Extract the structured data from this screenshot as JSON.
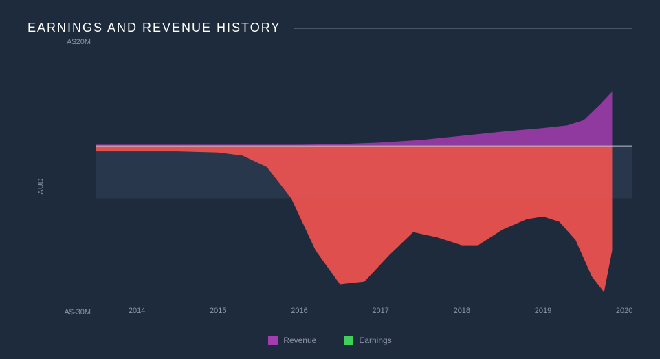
{
  "chart": {
    "type": "area",
    "title": "EARNINGS AND REVENUE HISTORY",
    "title_fontsize": 18,
    "title_letterspacing": 2,
    "background_color": "#1e2b3c",
    "plot_band_color": "#28374c",
    "text_color": "#ffffff",
    "muted_text_color": "#8a96a8",
    "divider_color": "#4a5568",
    "ylabel": "AUD",
    "ylim": [
      -30,
      20
    ],
    "yticks": [
      {
        "value": 20,
        "label": "A$20M"
      },
      {
        "value": -30,
        "label": "A$-30M"
      }
    ],
    "baseline_value": 0,
    "baseline_color": "#b8c2d0",
    "grid_band_bounds": [
      -10,
      0
    ],
    "xlim": [
      2013.5,
      2020.1
    ],
    "xticks": [
      {
        "value": 2014,
        "label": "2014"
      },
      {
        "value": 2015,
        "label": "2015"
      },
      {
        "value": 2016,
        "label": "2016"
      },
      {
        "value": 2017,
        "label": "2017"
      },
      {
        "value": 2018,
        "label": "2018"
      },
      {
        "value": 2019,
        "label": "2019"
      },
      {
        "value": 2020,
        "label": "2020"
      }
    ],
    "legend": [
      {
        "name": "Revenue",
        "color": "#a43db0"
      },
      {
        "name": "Earnings",
        "color": "#3fcf5a"
      }
    ],
    "series": {
      "revenue": {
        "legend_color": "#a43db0",
        "fill_opacity": 0.85,
        "data": [
          {
            "x": 2013.5,
            "y": 0.3
          },
          {
            "x": 2014.0,
            "y": 0.3
          },
          {
            "x": 2015.0,
            "y": 0.3
          },
          {
            "x": 2016.0,
            "y": 0.3
          },
          {
            "x": 2016.5,
            "y": 0.4
          },
          {
            "x": 2017.0,
            "y": 0.7
          },
          {
            "x": 2017.5,
            "y": 1.2
          },
          {
            "x": 2018.0,
            "y": 2.0
          },
          {
            "x": 2018.5,
            "y": 2.8
          },
          {
            "x": 2019.0,
            "y": 3.5
          },
          {
            "x": 2019.3,
            "y": 4.0
          },
          {
            "x": 2019.5,
            "y": 5.0
          },
          {
            "x": 2019.7,
            "y": 8.0
          },
          {
            "x": 2019.85,
            "y": 10.5
          }
        ]
      },
      "earnings": {
        "fill_color": "#ef5350",
        "fill_opacity": 0.92,
        "data": [
          {
            "x": 2013.5,
            "y": -1.0
          },
          {
            "x": 2014.0,
            "y": -1.0
          },
          {
            "x": 2014.5,
            "y": -1.0
          },
          {
            "x": 2015.0,
            "y": -1.2
          },
          {
            "x": 2015.3,
            "y": -1.8
          },
          {
            "x": 2015.6,
            "y": -4.0
          },
          {
            "x": 2015.9,
            "y": -10.0
          },
          {
            "x": 2016.2,
            "y": -20.0
          },
          {
            "x": 2016.5,
            "y": -26.5
          },
          {
            "x": 2016.8,
            "y": -26.0
          },
          {
            "x": 2017.1,
            "y": -21.0
          },
          {
            "x": 2017.4,
            "y": -16.5
          },
          {
            "x": 2017.7,
            "y": -17.5
          },
          {
            "x": 2018.0,
            "y": -19.0
          },
          {
            "x": 2018.2,
            "y": -19.0
          },
          {
            "x": 2018.5,
            "y": -16.0
          },
          {
            "x": 2018.8,
            "y": -14.0
          },
          {
            "x": 2019.0,
            "y": -13.5
          },
          {
            "x": 2019.2,
            "y": -14.5
          },
          {
            "x": 2019.4,
            "y": -18.0
          },
          {
            "x": 2019.6,
            "y": -25.0
          },
          {
            "x": 2019.75,
            "y": -28.0
          },
          {
            "x": 2019.85,
            "y": -20.0
          }
        ]
      }
    }
  }
}
